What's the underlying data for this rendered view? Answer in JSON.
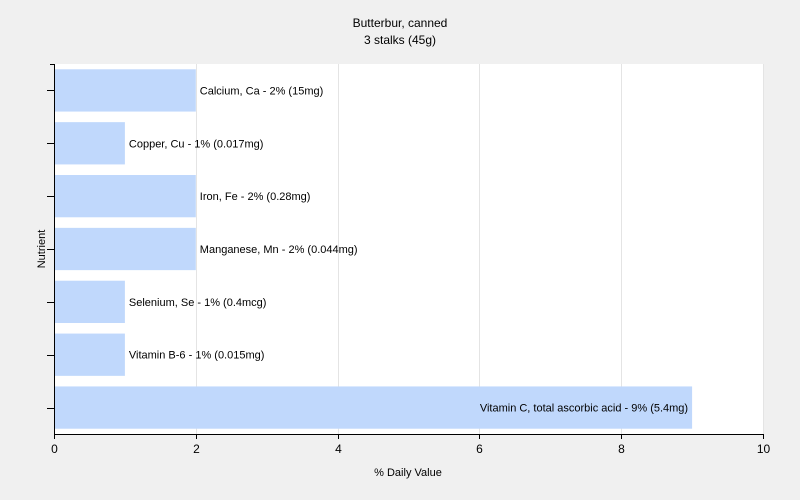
{
  "chart_data": {
    "type": "bar",
    "orientation": "horizontal",
    "title": "Butterbur, canned",
    "subtitle": "3 stalks (45g)",
    "xlabel": "% Daily Value",
    "ylabel": "Nutrient",
    "xlim": [
      0,
      10
    ],
    "xticks": [
      "0",
      "2",
      "4",
      "6",
      "8",
      "10"
    ],
    "grid": true,
    "bar_color": "#c0d8fc",
    "categories": [
      "Calcium, Ca",
      "Copper, Cu",
      "Iron, Fe",
      "Manganese, Mn",
      "Selenium, Se",
      "Vitamin B-6",
      "Vitamin C, total ascorbic acid"
    ],
    "values": [
      2,
      1,
      2,
      2,
      1,
      1,
      9
    ],
    "labels": [
      "Calcium, Ca - 2% (15mg)",
      "Copper, Cu - 1% (0.017mg)",
      "Iron, Fe - 2% (0.28mg)",
      "Manganese, Mn - 2% (0.044mg)",
      "Selenium, Se - 1% (0.4mcg)",
      "Vitamin B-6 - 1% (0.015mg)",
      "Vitamin C, total ascorbic acid - 9% (5.4mg)"
    ]
  }
}
